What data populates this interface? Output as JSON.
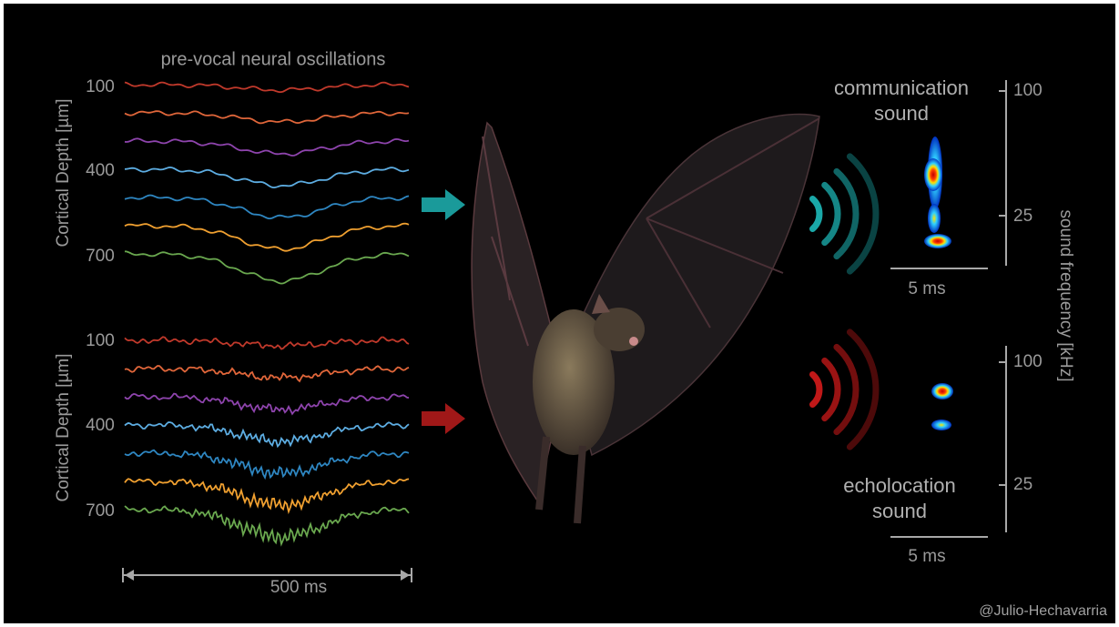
{
  "title": "pre-vocal neural oscillations",
  "panels": [
    {
      "y_label": "Cortical Depth [µm]",
      "depth_ticks": [
        "100",
        "400",
        "700"
      ]
    },
    {
      "y_label": "Cortical Depth [µm]",
      "depth_ticks": [
        "100",
        "400",
        "700"
      ]
    }
  ],
  "time_scale": "500 ms",
  "sounds": [
    {
      "label_lines": [
        "communication",
        "sound"
      ],
      "time_scale": "5 ms",
      "freq_ticks": [
        "100",
        "25"
      ]
    },
    {
      "label_lines": [
        "echolocation",
        "sound"
      ],
      "time_scale": "5 ms",
      "freq_ticks": [
        "100",
        "25"
      ]
    }
  ],
  "freq_axis_label": "sound frequency [kHz]",
  "credit": "@Julio-Hechavarria"
}
